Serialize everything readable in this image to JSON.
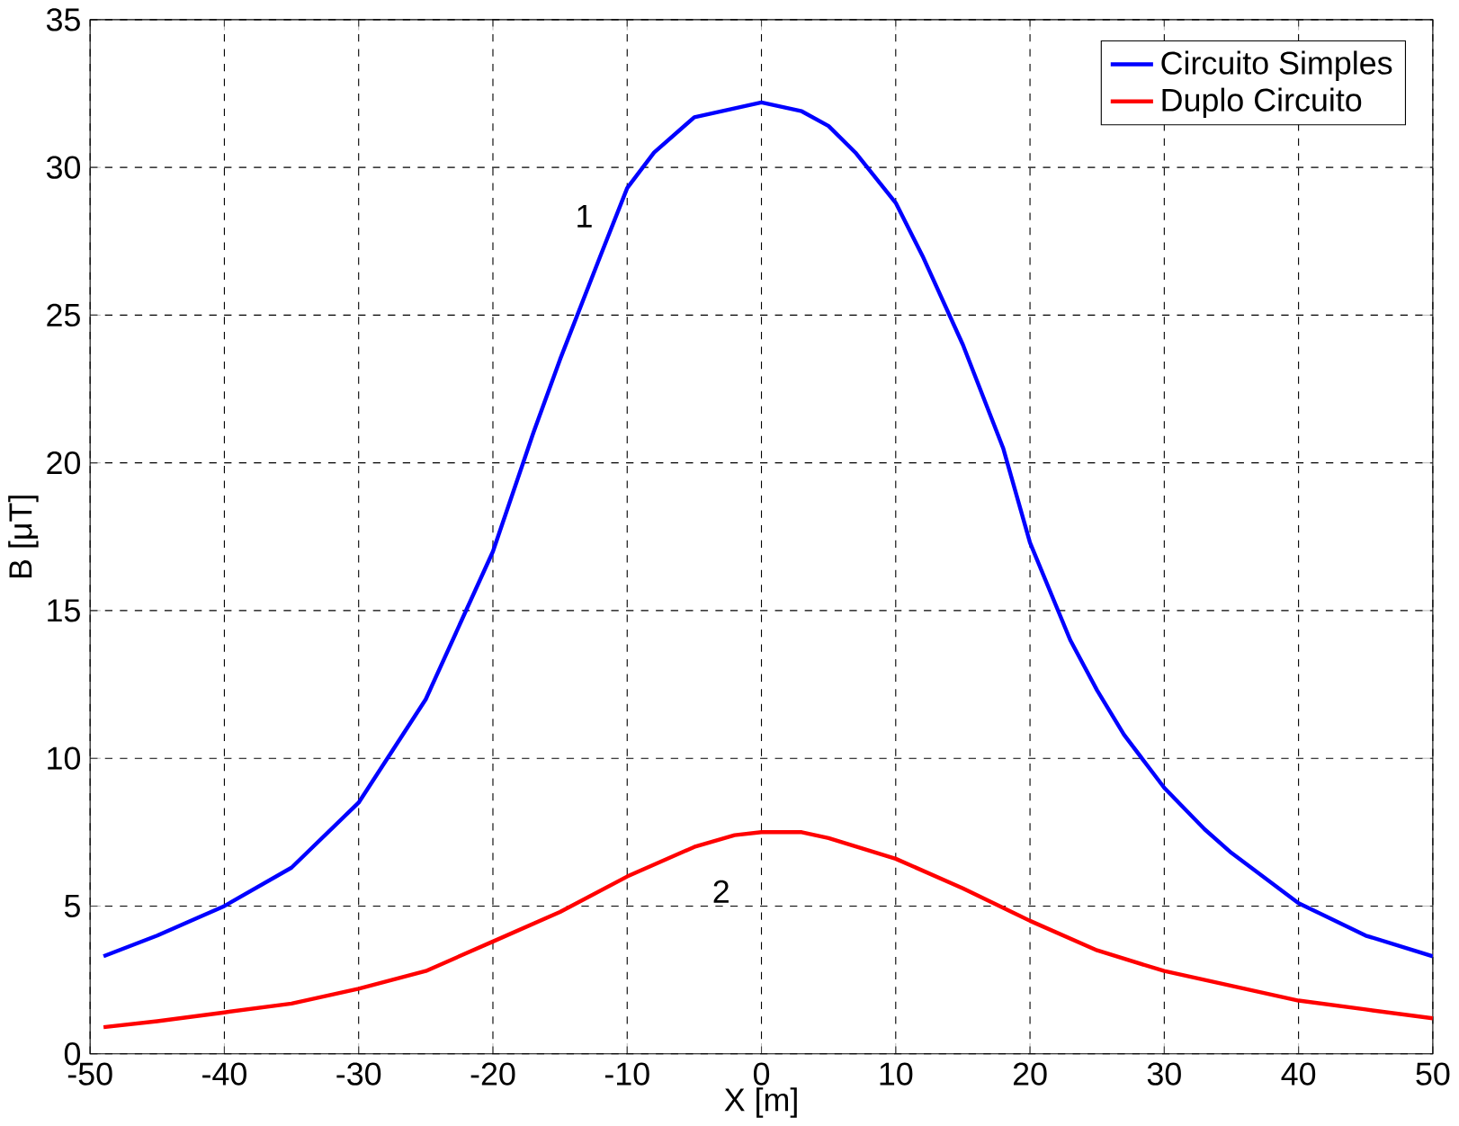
{
  "chart_data": {
    "type": "line",
    "xlabel": "X [m]",
    "ylabel": "B [μT]",
    "xlim": [
      -50,
      50
    ],
    "ylim": [
      0,
      35
    ],
    "xticks": [
      -50,
      -40,
      -30,
      -20,
      -10,
      0,
      10,
      20,
      30,
      40,
      50
    ],
    "yticks": [
      0,
      5,
      10,
      15,
      20,
      25,
      30,
      35
    ],
    "grid": true,
    "legend": "top right",
    "line_style": "solid",
    "annotations": [
      "1",
      "2"
    ],
    "series": [
      {
        "name": "Circuito Simples",
        "color": "#0000ff",
        "x": [
          -49,
          -45,
          -40,
          -35,
          -30,
          -25,
          -20,
          -17,
          -15,
          -12,
          -10,
          -8,
          -5,
          0,
          3,
          5,
          7,
          10,
          12,
          15,
          18,
          20,
          23,
          25,
          27,
          30,
          33,
          35,
          40,
          45,
          50
        ],
        "values": [
          3.3,
          4.0,
          5.0,
          6.3,
          8.5,
          12,
          17,
          21,
          23.5,
          27,
          29.3,
          30.5,
          31.7,
          32.2,
          31.9,
          31.4,
          30.5,
          28.8,
          27.0,
          24.0,
          20.5,
          17.3,
          14.0,
          12.3,
          10.8,
          9.0,
          7.6,
          6.8,
          5.1,
          4.0,
          3.3
        ]
      },
      {
        "name": "Duplo Circuito",
        "color": "#ff0000",
        "x": [
          -49,
          -45,
          -40,
          -35,
          -30,
          -25,
          -20,
          -15,
          -10,
          -5,
          -2,
          0,
          3,
          5,
          10,
          15,
          20,
          25,
          30,
          35,
          40,
          45,
          50
        ],
        "values": [
          0.9,
          1.1,
          1.4,
          1.7,
          2.2,
          2.8,
          3.8,
          4.8,
          6.0,
          7.0,
          7.4,
          7.5,
          7.5,
          7.3,
          6.6,
          5.6,
          4.5,
          3.5,
          2.8,
          2.3,
          1.8,
          1.5,
          1.2
        ]
      }
    ]
  }
}
